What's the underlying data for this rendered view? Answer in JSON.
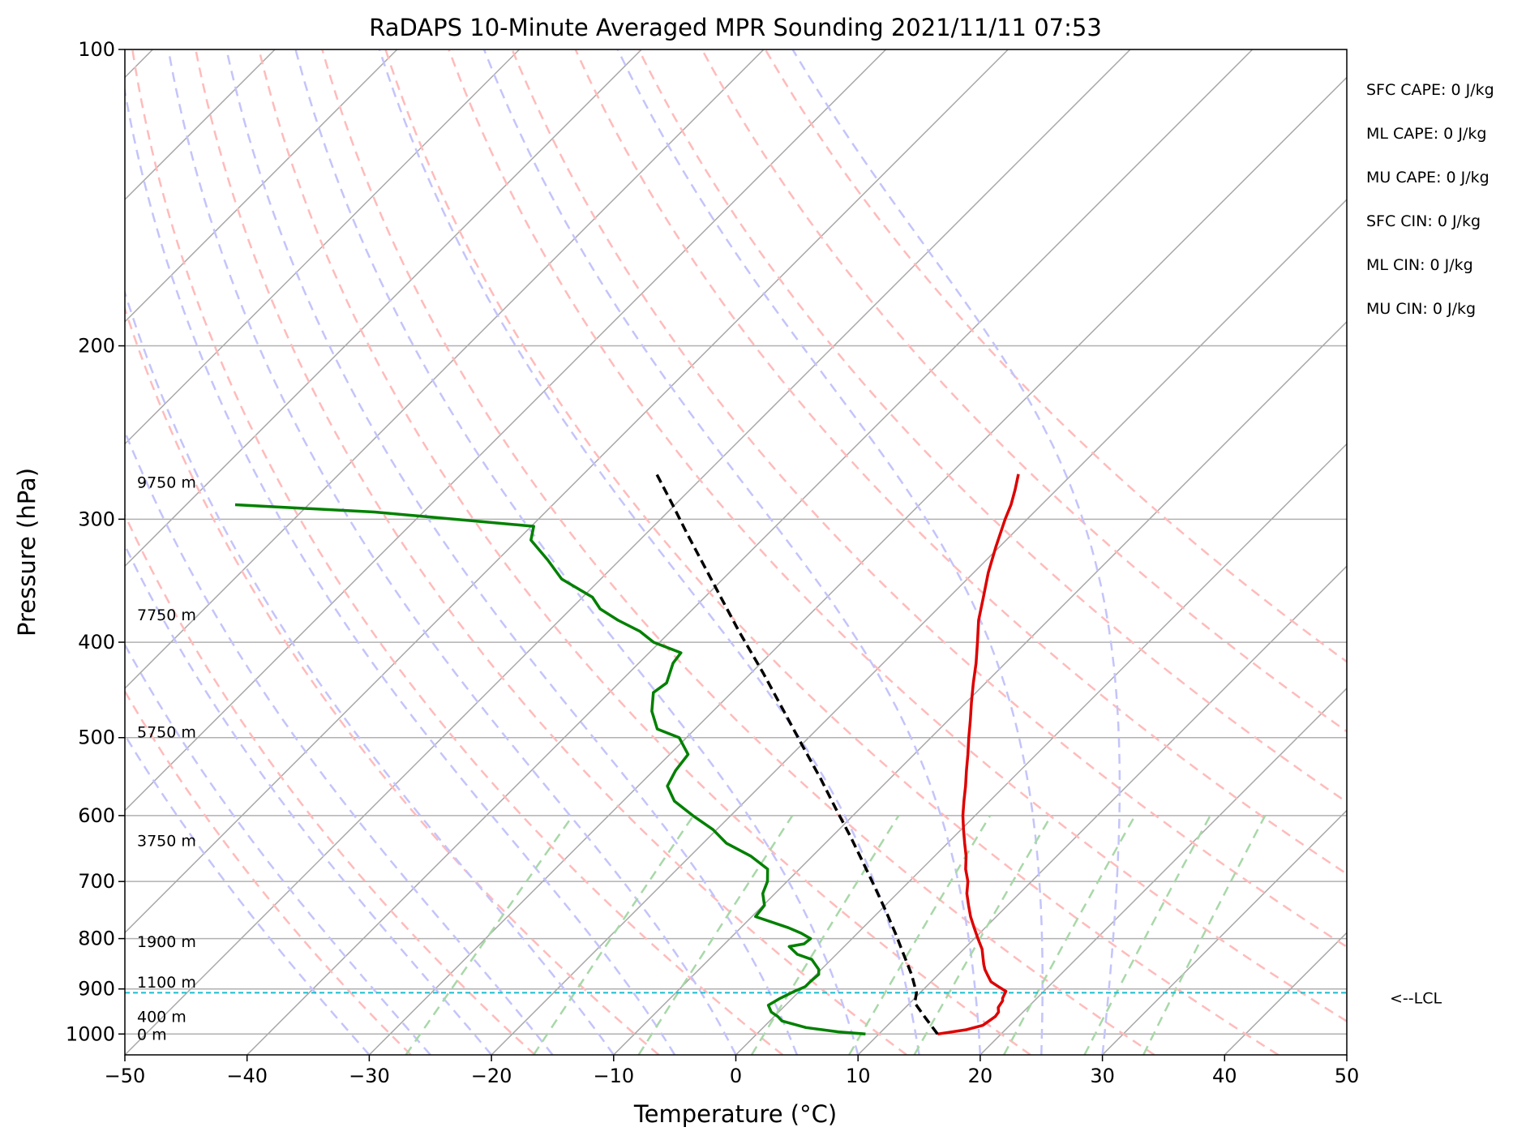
{
  "chart_data": {
    "type": "line",
    "subtype": "skew-T log-P sounding diagram",
    "title": "RaDAPS 10-Minute Averaged MPR Sounding 2021/11/11 07:53",
    "xlabel": "Temperature (°C)",
    "ylabel": "Pressure (hPa)",
    "xlim": [
      -50,
      50
    ],
    "ylim": [
      1050,
      100
    ],
    "y_scale": "log",
    "grid": true,
    "x_ticks": [
      -50,
      -40,
      -30,
      -20,
      -10,
      0,
      10,
      20,
      30,
      40,
      50
    ],
    "x_tick_labels": [
      "−50",
      "−40",
      "−30",
      "−20",
      "−10",
      "0",
      "10",
      "20",
      "30",
      "40",
      "50"
    ],
    "y_ticks": [
      100,
      200,
      300,
      400,
      500,
      600,
      700,
      800,
      900,
      1000
    ],
    "y_tick_labels": [
      "100",
      "200",
      "300",
      "400",
      "500",
      "600",
      "700",
      "800",
      "900",
      "1000"
    ],
    "temperature": {
      "color": "#dd0000",
      "p": [
        1000,
        990,
        980,
        960,
        950,
        940,
        925,
        920,
        905,
        895,
        885,
        870,
        860,
        850,
        835,
        820,
        800,
        780,
        760,
        740,
        720,
        700,
        680,
        660,
        640,
        620,
        600,
        580,
        560,
        540,
        520,
        500,
        480,
        460,
        440,
        420,
        400,
        380,
        360,
        340,
        320,
        300,
        290,
        280,
        270
      ],
      "t": [
        14.8,
        16.8,
        17.8,
        18.1,
        18.0,
        17.6,
        17.4,
        17.2,
        16.9,
        15.9,
        14.9,
        14.0,
        13.4,
        12.9,
        12.2,
        11.5,
        10.3,
        9.1,
        7.9,
        6.8,
        5.7,
        4.8,
        3.6,
        2.6,
        1.4,
        0.2,
        -1.0,
        -2.1,
        -3.2,
        -4.4,
        -5.6,
        -6.9,
        -8.2,
        -9.6,
        -11.0,
        -12.4,
        -14.0,
        -15.7,
        -17.2,
        -18.8,
        -20.3,
        -21.8,
        -22.5,
        -23.4,
        -24.4
      ]
    },
    "dewpoint": {
      "color": "#008000",
      "p": [
        1000,
        995,
        985,
        970,
        960,
        950,
        935,
        920,
        905,
        895,
        885,
        870,
        860,
        840,
        830,
        815,
        810,
        800,
        790,
        780,
        760,
        740,
        720,
        700,
        680,
        660,
        640,
        620,
        600,
        580,
        560,
        540,
        520,
        500,
        490,
        470,
        450,
        440,
        420,
        410,
        400,
        390,
        380,
        370,
        360,
        345,
        330,
        315,
        305,
        295,
        290
      ],
      "td": [
        8.9,
        6.5,
        3.5,
        1.0,
        0.3,
        -0.6,
        -1.4,
        -1.0,
        -0.4,
        0.1,
        0.1,
        0.2,
        -0.2,
        -1.6,
        -3.2,
        -4.5,
        -3.5,
        -3.4,
        -4.6,
        -6.1,
        -9.7,
        -9.9,
        -11.0,
        -11.6,
        -12.6,
        -15.0,
        -18.1,
        -20.3,
        -23.1,
        -25.8,
        -27.6,
        -28.2,
        -28.5,
        -30.6,
        -33.1,
        -35.0,
        -36.4,
        -36.1,
        -37.2,
        -37.4,
        -40.5,
        -42.5,
        -45.2,
        -47.6,
        -49.2,
        -53.2,
        -55.9,
        -58.9,
        -59.8,
        -74.0,
        -86.0
      ]
    },
    "parcel_path": {
      "color": "#000000",
      "p": [
        1000,
        960,
        930,
        908,
        870,
        830,
        790,
        750,
        710,
        670,
        630,
        590,
        550,
        510,
        470,
        430,
        390,
        350,
        310,
        290,
        270
      ],
      "t": [
        14.8,
        12.3,
        10.4,
        9.7,
        7.8,
        5.5,
        3.1,
        0.5,
        -2.3,
        -5.3,
        -8.5,
        -12.0,
        -15.7,
        -19.8,
        -24.2,
        -29.0,
        -34.4,
        -40.2,
        -46.7,
        -50.2,
        -54.0
      ]
    },
    "lcl": {
      "pressure": 908,
      "label": "<--LCL",
      "color": "#17becf"
    },
    "height_labels": [
      {
        "p": 1000,
        "text": "0 m"
      },
      {
        "p": 960,
        "text": "400 m"
      },
      {
        "p": 885,
        "text": "1100 m"
      },
      {
        "p": 805,
        "text": "1900 m"
      },
      {
        "p": 636,
        "text": "3750 m"
      },
      {
        "p": 493,
        "text": "5750 m"
      },
      {
        "p": 375,
        "text": "7750 m"
      },
      {
        "p": 275,
        "text": "9750 m"
      }
    ],
    "reference_lines": {
      "isotherm_color": "#a8a8a8",
      "dry_adiabat_color": "#ffbbbb",
      "moist_adiabat_color": "#c4c4fb",
      "mixing_ratio_color": "#a8d8a8",
      "dry_adiabat_theta_c": [
        -30,
        -20,
        -10,
        0,
        10,
        20,
        30,
        40,
        50,
        60,
        70,
        80,
        90,
        100
      ],
      "moist_adiabat_start_c": [
        -30,
        -25,
        -20,
        -15,
        -10,
        -5,
        0,
        5,
        10,
        15,
        20,
        25,
        30
      ],
      "mixing_ratio_gkg": [
        0.4,
        1,
        2,
        4,
        7,
        10,
        16,
        24,
        32
      ]
    },
    "stats": [
      {
        "text": "SFC CAPE: 0 J/kg"
      },
      {
        "text": "ML CAPE: 0 J/kg"
      },
      {
        "text": "MU CAPE: 0 J/kg"
      },
      {
        "text": "SFC CIN: 0 J/kg"
      },
      {
        "text": "ML CIN: 0 J/kg"
      },
      {
        "text": "MU CIN: 0 J/kg"
      }
    ]
  }
}
